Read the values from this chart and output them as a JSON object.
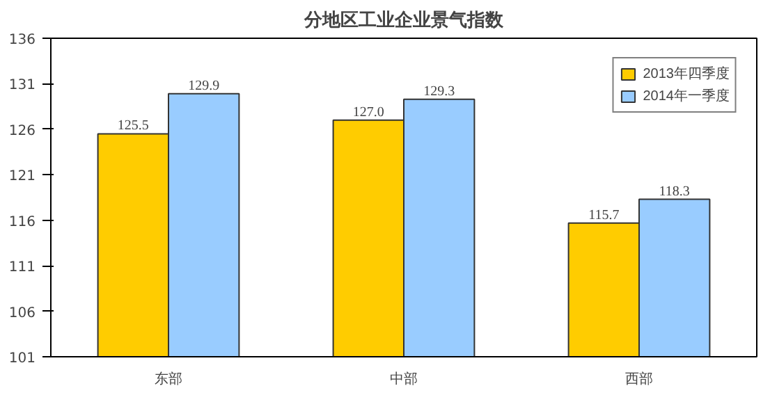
{
  "chart_data": {
    "type": "bar",
    "title": "分地区工业企业景气指数",
    "categories": [
      "东部",
      "中部",
      "西部"
    ],
    "series": [
      {
        "name": "2013年四季度",
        "color": "#ffcc00",
        "values": [
          125.5,
          127.0,
          115.7
        ],
        "value_labels": [
          "125.5",
          "127.0",
          "115.7"
        ]
      },
      {
        "name": "2014年一季度",
        "color": "#99ccff",
        "values": [
          129.9,
          129.3,
          118.3
        ],
        "value_labels": [
          "129.9",
          "129.3",
          "118.3"
        ]
      }
    ],
    "ylim": [
      101,
      136
    ],
    "yticks": [
      101,
      106,
      111,
      116,
      121,
      126,
      131,
      136
    ],
    "grid": false,
    "legend": "top right"
  }
}
